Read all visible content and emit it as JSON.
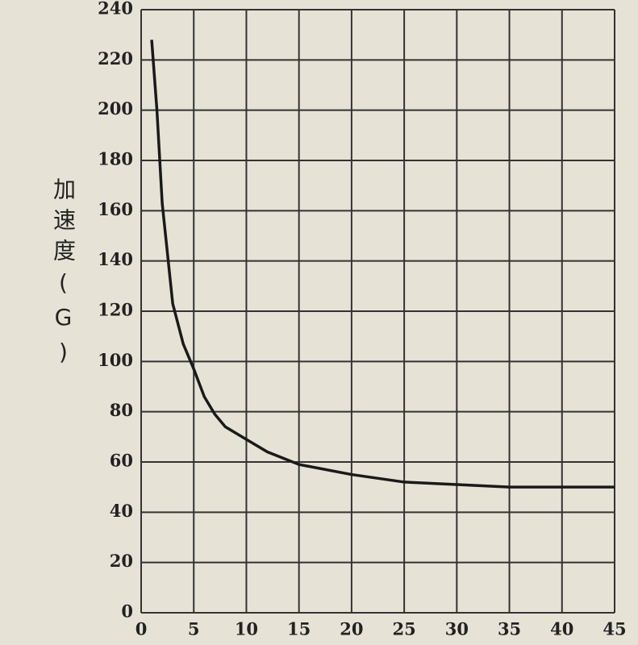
{
  "chart_data": {
    "type": "line",
    "y_label": "加速度(G)",
    "x": [
      1,
      1.5,
      2,
      3,
      4,
      5,
      6,
      7,
      8,
      10,
      12,
      15,
      20,
      25,
      30,
      35,
      40,
      45
    ],
    "series": [
      {
        "name": "加速度",
        "color": "#1a1a1a",
        "values": [
          228,
          200,
          163,
          123,
          107,
          97,
          86,
          79,
          74,
          69,
          64,
          59,
          55,
          52,
          51,
          50,
          50,
          50
        ]
      }
    ],
    "xlim": [
      0,
      45
    ],
    "xticks": [
      0,
      5,
      10,
      15,
      20,
      25,
      30,
      35,
      40,
      45
    ],
    "ylim": [
      0,
      240
    ],
    "yticks": [
      0,
      20,
      40,
      60,
      80,
      100,
      120,
      140,
      160,
      180,
      200,
      220,
      240
    ],
    "grid": true
  }
}
